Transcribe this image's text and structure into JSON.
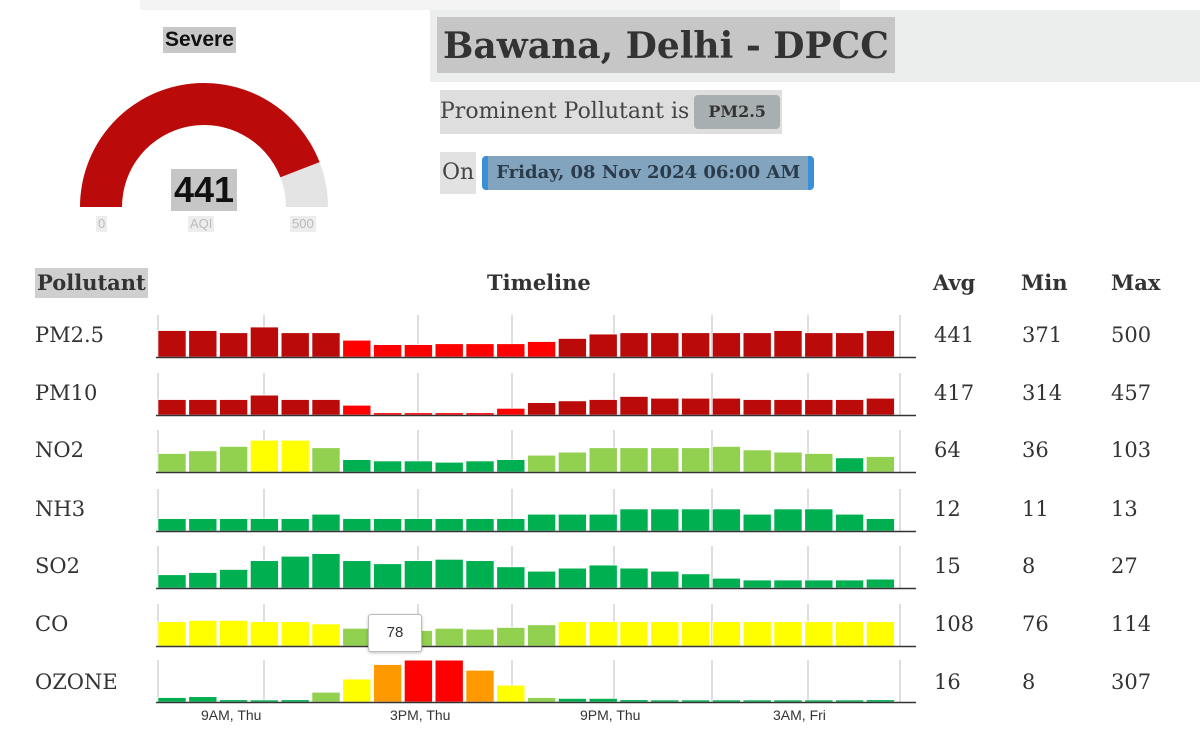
{
  "gauge": {
    "category": "Severe",
    "aqi": "441",
    "min_label": "0",
    "mid_label": "AQI",
    "max_label": "500",
    "value": 441,
    "max": 500,
    "fill_color": "#bb0a0a",
    "track_color": "#e4e4e4"
  },
  "station": {
    "name": "Bawana, Delhi - DPCC",
    "prominent_text": "Prominent Pollutant is",
    "prominent_value": "PM2.5",
    "on_text": "On",
    "datetime": "Friday, 08 Nov 2024 06:00 AM"
  },
  "table": {
    "headers": {
      "pollutant": "Pollutant",
      "timeline": "Timeline",
      "avg": "Avg",
      "min": "Min",
      "max": "Max"
    },
    "rows": [
      {
        "name": "PM2.5",
        "avg": "441",
        "min": "371",
        "max": "500"
      },
      {
        "name": "PM10",
        "avg": "417",
        "min": "314",
        "max": "457"
      },
      {
        "name": "NO2",
        "avg": "64",
        "min": "36",
        "max": "103"
      },
      {
        "name": "NH3",
        "avg": "12",
        "min": "11",
        "max": "13"
      },
      {
        "name": "SO2",
        "avg": "15",
        "min": "8",
        "max": "27"
      },
      {
        "name": "CO",
        "avg": "108",
        "min": "76",
        "max": "114"
      },
      {
        "name": "OZONE",
        "avg": "16",
        "min": "8",
        "max": "307"
      }
    ]
  },
  "tooltip": {
    "value": "78"
  },
  "x_axis_labels": [
    "9AM, Thu",
    "3PM, Thu",
    "9PM, Thu",
    "3AM, Fri"
  ],
  "colors": {
    "severe": "#bb0a0a",
    "very_poor": "#ff0000",
    "poor": "#ff9900",
    "moderate": "#ffff00",
    "satisfactory": "#92d050",
    "good": "#00b050"
  },
  "chart_data": {
    "type": "bar",
    "title": "Timeline",
    "note": "Hourly sub-index bars per pollutant, 24 hours; values are relative bar heights (0-1) estimated from the image",
    "x_tick_labels": [
      "9AM, Thu",
      "3PM, Thu",
      "9PM, Thu",
      "3AM, Fri"
    ],
    "series": [
      {
        "name": "PM2.5",
        "values": [
          0.6,
          0.6,
          0.55,
          0.68,
          0.55,
          0.55,
          0.38,
          0.28,
          0.28,
          0.3,
          0.3,
          0.3,
          0.35,
          0.42,
          0.52,
          0.55,
          0.55,
          0.55,
          0.55,
          0.55,
          0.6,
          0.55,
          0.55,
          0.6
        ],
        "categories": [
          "severe",
          "severe",
          "severe",
          "severe",
          "severe",
          "severe",
          "very_poor",
          "very_poor",
          "very_poor",
          "very_poor",
          "very_poor",
          "very_poor",
          "very_poor",
          "severe",
          "severe",
          "severe",
          "severe",
          "severe",
          "severe",
          "severe",
          "severe",
          "severe",
          "severe",
          "severe"
        ]
      },
      {
        "name": "PM10",
        "values": [
          0.35,
          0.35,
          0.35,
          0.45,
          0.35,
          0.35,
          0.22,
          0.05,
          0.05,
          0.05,
          0.05,
          0.15,
          0.28,
          0.32,
          0.35,
          0.42,
          0.38,
          0.38,
          0.38,
          0.35,
          0.35,
          0.35,
          0.35,
          0.38
        ],
        "categories": [
          "severe",
          "severe",
          "severe",
          "severe",
          "severe",
          "severe",
          "very_poor",
          "very_poor",
          "very_poor",
          "very_poor",
          "very_poor",
          "very_poor",
          "severe",
          "severe",
          "severe",
          "severe",
          "severe",
          "severe",
          "severe",
          "severe",
          "severe",
          "severe",
          "severe",
          "severe"
        ]
      },
      {
        "name": "NO2",
        "values": [
          0.42,
          0.48,
          0.58,
          0.72,
          0.72,
          0.55,
          0.28,
          0.25,
          0.25,
          0.22,
          0.25,
          0.28,
          0.38,
          0.45,
          0.55,
          0.55,
          0.55,
          0.55,
          0.58,
          0.5,
          0.45,
          0.42,
          0.32,
          0.35
        ],
        "categories": [
          "satisfactory",
          "satisfactory",
          "satisfactory",
          "moderate",
          "moderate",
          "satisfactory",
          "good",
          "good",
          "good",
          "good",
          "good",
          "good",
          "satisfactory",
          "satisfactory",
          "satisfactory",
          "satisfactory",
          "satisfactory",
          "satisfactory",
          "satisfactory",
          "satisfactory",
          "satisfactory",
          "satisfactory",
          "good",
          "satisfactory"
        ]
      },
      {
        "name": "NH3",
        "values": [
          0.28,
          0.28,
          0.28,
          0.28,
          0.28,
          0.38,
          0.28,
          0.28,
          0.28,
          0.28,
          0.28,
          0.28,
          0.38,
          0.38,
          0.38,
          0.5,
          0.5,
          0.5,
          0.5,
          0.38,
          0.5,
          0.5,
          0.38,
          0.28
        ],
        "categories": [
          "good",
          "good",
          "good",
          "good",
          "good",
          "good",
          "good",
          "good",
          "good",
          "good",
          "good",
          "good",
          "good",
          "good",
          "good",
          "good",
          "good",
          "good",
          "good",
          "good",
          "good",
          "good",
          "good",
          "good"
        ]
      },
      {
        "name": "SO2",
        "values": [
          0.3,
          0.35,
          0.42,
          0.62,
          0.72,
          0.78,
          0.62,
          0.55,
          0.62,
          0.65,
          0.62,
          0.48,
          0.38,
          0.45,
          0.52,
          0.45,
          0.38,
          0.32,
          0.22,
          0.18,
          0.18,
          0.18,
          0.18,
          0.2
        ],
        "categories": [
          "good",
          "good",
          "good",
          "good",
          "good",
          "good",
          "good",
          "good",
          "good",
          "good",
          "good",
          "good",
          "good",
          "good",
          "good",
          "good",
          "good",
          "good",
          "good",
          "good",
          "good",
          "good",
          "good",
          "good"
        ]
      },
      {
        "name": "CO",
        "values": [
          0.55,
          0.58,
          0.58,
          0.55,
          0.55,
          0.5,
          0.4,
          0.35,
          0.35,
          0.4,
          0.38,
          0.42,
          0.48,
          0.55,
          0.55,
          0.55,
          0.55,
          0.55,
          0.55,
          0.55,
          0.55,
          0.55,
          0.55,
          0.55
        ],
        "categories": [
          "moderate",
          "moderate",
          "moderate",
          "moderate",
          "moderate",
          "moderate",
          "satisfactory",
          "satisfactory",
          "satisfactory",
          "satisfactory",
          "satisfactory",
          "satisfactory",
          "satisfactory",
          "moderate",
          "moderate",
          "moderate",
          "moderate",
          "moderate",
          "moderate",
          "moderate",
          "moderate",
          "moderate",
          "moderate",
          "moderate"
        ]
      },
      {
        "name": "OZONE",
        "values": [
          0.1,
          0.12,
          0.05,
          0.03,
          0.05,
          0.22,
          0.52,
          0.85,
          0.95,
          0.95,
          0.72,
          0.38,
          0.1,
          0.08,
          0.08,
          0.05,
          0.03,
          0.03,
          0.03,
          0.03,
          0.03,
          0.03,
          0.03,
          0.05
        ],
        "categories": [
          "good",
          "good",
          "good",
          "good",
          "good",
          "satisfactory",
          "moderate",
          "poor",
          "very_poor",
          "very_poor",
          "poor",
          "moderate",
          "satisfactory",
          "good",
          "good",
          "good",
          "good",
          "good",
          "good",
          "good",
          "good",
          "good",
          "good",
          "good"
        ]
      }
    ]
  }
}
